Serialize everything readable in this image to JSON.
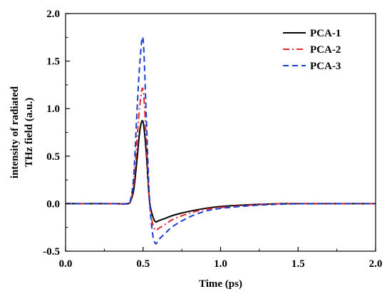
{
  "chart_data": {
    "type": "line",
    "title": "",
    "xlabel": "Time (ps)",
    "ylabel_lines": [
      "intensity of radiated",
      "THz field (a.u.)"
    ],
    "xlim": [
      0.0,
      2.0
    ],
    "ylim": [
      -0.5,
      2.0
    ],
    "xticks": [
      "0.0",
      "0.5",
      "1.0",
      "1.5",
      "2.0"
    ],
    "yticks": [
      "-0.5",
      "0.0",
      "0.5",
      "1.0",
      "1.5",
      "2.0"
    ],
    "grid": false,
    "legend_position": "top-right",
    "x": [
      0.0,
      0.3,
      0.4,
      0.42,
      0.44,
      0.46,
      0.48,
      0.5,
      0.52,
      0.54,
      0.56,
      0.58,
      0.6,
      0.65,
      0.7,
      0.8,
      0.9,
      1.0,
      1.2,
      1.4,
      1.6,
      2.0
    ],
    "series": [
      {
        "name": "PCA-1",
        "color": "#000000",
        "dash": "solid",
        "values": [
          0.0,
          0.0,
          0.0,
          0.03,
          0.15,
          0.45,
          0.78,
          0.86,
          0.55,
          0.05,
          -0.12,
          -0.19,
          -0.18,
          -0.15,
          -0.12,
          -0.08,
          -0.05,
          -0.03,
          -0.01,
          0.0,
          0.0,
          0.0
        ]
      },
      {
        "name": "PCA-2",
        "color": "#e8262a",
        "dash": "dashdot",
        "values": [
          0.0,
          0.0,
          0.0,
          0.04,
          0.22,
          0.65,
          1.05,
          1.2,
          0.7,
          0.05,
          -0.2,
          -0.28,
          -0.26,
          -0.21,
          -0.16,
          -0.1,
          -0.06,
          -0.04,
          -0.015,
          0.0,
          0.0,
          0.0
        ]
      },
      {
        "name": "PCA-3",
        "color": "#1a3dcc",
        "dash": "dashed",
        "values": [
          0.0,
          0.0,
          0.0,
          0.05,
          0.3,
          0.95,
          1.5,
          1.73,
          0.95,
          0.1,
          -0.3,
          -0.42,
          -0.38,
          -0.3,
          -0.23,
          -0.14,
          -0.08,
          -0.05,
          -0.02,
          -0.005,
          0.0,
          0.0
        ]
      }
    ]
  }
}
